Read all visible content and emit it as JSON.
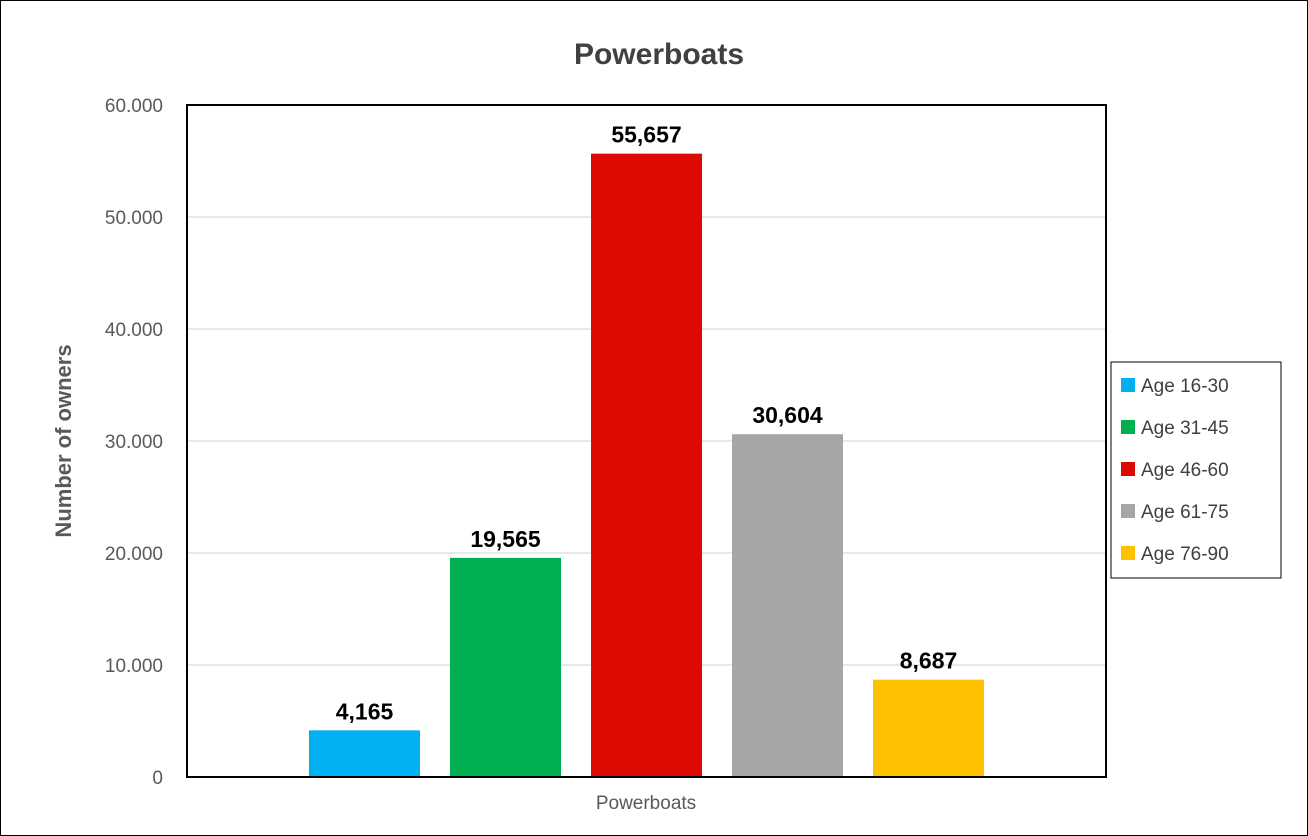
{
  "chart_data": {
    "type": "bar",
    "title": "Powerboats",
    "xlabel": "",
    "ylabel": "Number of owners",
    "categories": [
      "Powerboats"
    ],
    "series": [
      {
        "name": "Age 16-30",
        "values": [
          4165
        ],
        "label": "4,165",
        "color": "#00B0F0"
      },
      {
        "name": "Age 31-45",
        "values": [
          19565
        ],
        "label": "19,565",
        "color": "#00B050"
      },
      {
        "name": "Age 46-60",
        "values": [
          55657
        ],
        "label": "55,657",
        "color": "#DC0A00"
      },
      {
        "name": "Age 61-75",
        "values": [
          30604
        ],
        "label": "30,604",
        "color": "#A6A6A6"
      },
      {
        "name": "Age 76-90",
        "values": [
          8687
        ],
        "label": "8,687",
        "color": "#FFC000"
      }
    ],
    "ylim": [
      0,
      60000
    ],
    "yticks": [
      0,
      10000,
      20000,
      30000,
      40000,
      50000,
      60000
    ],
    "ytick_labels": [
      "0",
      "10.000",
      "20.000",
      "30.000",
      "40.000",
      "50.000",
      "60.000"
    ],
    "grid": true,
    "legend": "right"
  }
}
